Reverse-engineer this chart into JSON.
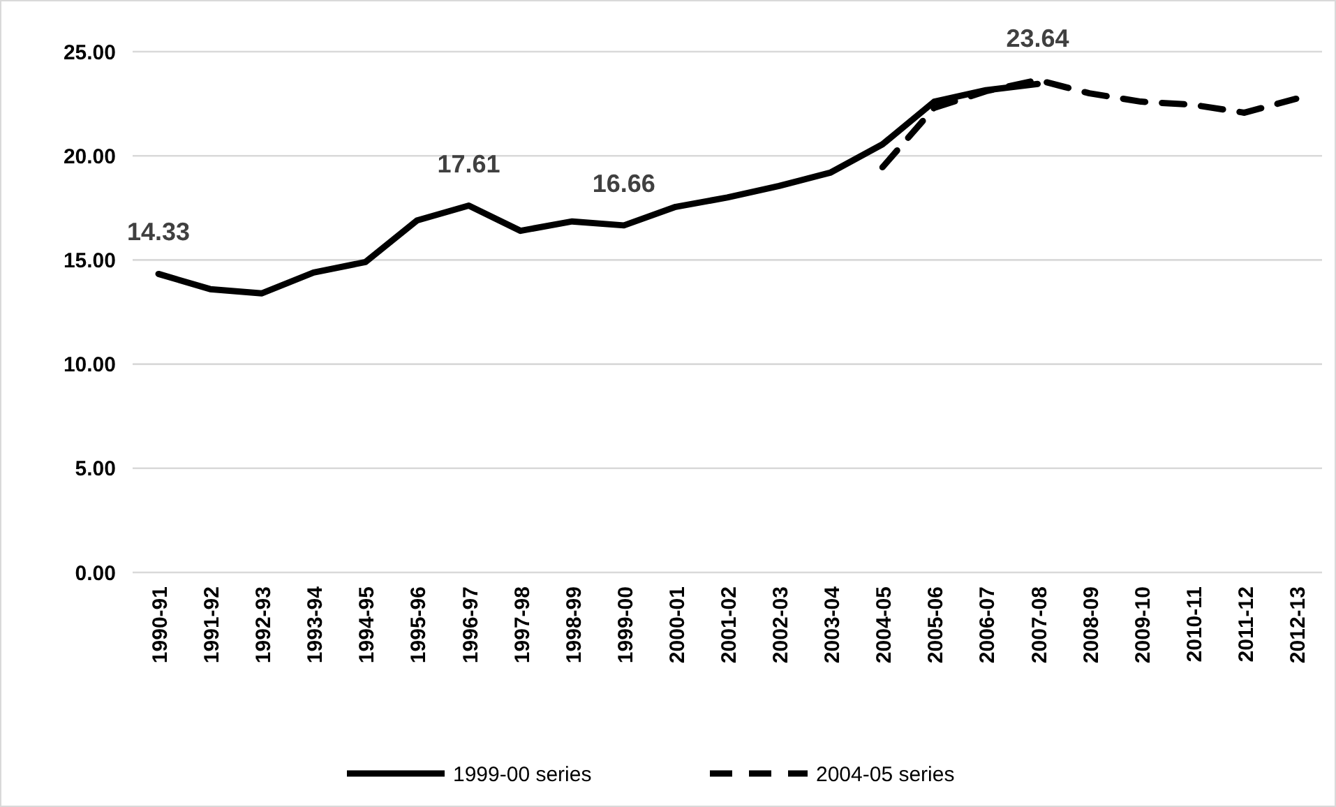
{
  "chart_data": {
    "type": "line",
    "categories": [
      "1990-91",
      "1991-92",
      "1992-93",
      "1993-94",
      "1994-95",
      "1995-96",
      "1996-97",
      "1997-98",
      "1998-99",
      "1999-00",
      "2000-01",
      "2001-02",
      "2002-03",
      "2003-04",
      "2004-05",
      "2005-06",
      "2006-07",
      "2007-08",
      "2008-09",
      "2009-10",
      "2010-11",
      "2011-12",
      "2012-13"
    ],
    "series": [
      {
        "name": "1999-00 series",
        "color": "#000000",
        "line_style": "solid",
        "values": [
          14.33,
          13.6,
          13.4,
          14.4,
          14.9,
          16.9,
          17.61,
          16.4,
          16.85,
          16.66,
          17.55,
          18.0,
          18.55,
          19.2,
          20.55,
          22.6,
          23.15,
          23.45,
          null,
          null,
          null,
          null,
          null
        ],
        "value_labels": [
          "14.33",
          null,
          null,
          null,
          null,
          null,
          "17.61",
          null,
          null,
          "16.66",
          null,
          null,
          null,
          null,
          null,
          null,
          null,
          null,
          null,
          null,
          null,
          null,
          null
        ]
      },
      {
        "name": "2004-05 series",
        "color": "#000000",
        "line_style": "dashed",
        "values": [
          null,
          null,
          null,
          null,
          null,
          null,
          null,
          null,
          null,
          null,
          null,
          null,
          null,
          null,
          19.45,
          22.3,
          23.1,
          23.64,
          23.0,
          22.6,
          22.45,
          22.07,
          22.74
        ],
        "value_labels": [
          null,
          null,
          null,
          null,
          null,
          null,
          null,
          null,
          null,
          null,
          null,
          null,
          null,
          null,
          null,
          null,
          null,
          "23.64",
          null,
          null,
          null,
          null,
          null
        ]
      }
    ],
    "ylim": [
      0,
      25
    ],
    "yticks": [
      {
        "value": 0,
        "label": "0.00"
      },
      {
        "value": 5,
        "label": "5.00"
      },
      {
        "value": 10,
        "label": "10.00"
      },
      {
        "value": 15,
        "label": "15.00"
      },
      {
        "value": 20,
        "label": "20.00"
      },
      {
        "value": 25,
        "label": "25.00"
      }
    ],
    "grid": "y",
    "legend": "bottom"
  }
}
